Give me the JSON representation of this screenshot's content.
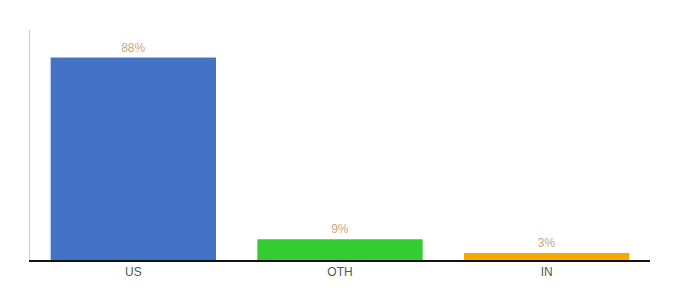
{
  "chart_data": {
    "type": "bar",
    "categories": [
      "US",
      "OTH",
      "IN"
    ],
    "values": [
      88,
      9,
      3
    ],
    "value_labels": [
      "88%",
      "9%",
      "3%"
    ],
    "colors": [
      "#4472c4",
      "#33cc33",
      "#f5a800"
    ],
    "ylim": [
      0,
      100
    ],
    "data_labels": true,
    "tick_labels": "x",
    "grid": false
  }
}
